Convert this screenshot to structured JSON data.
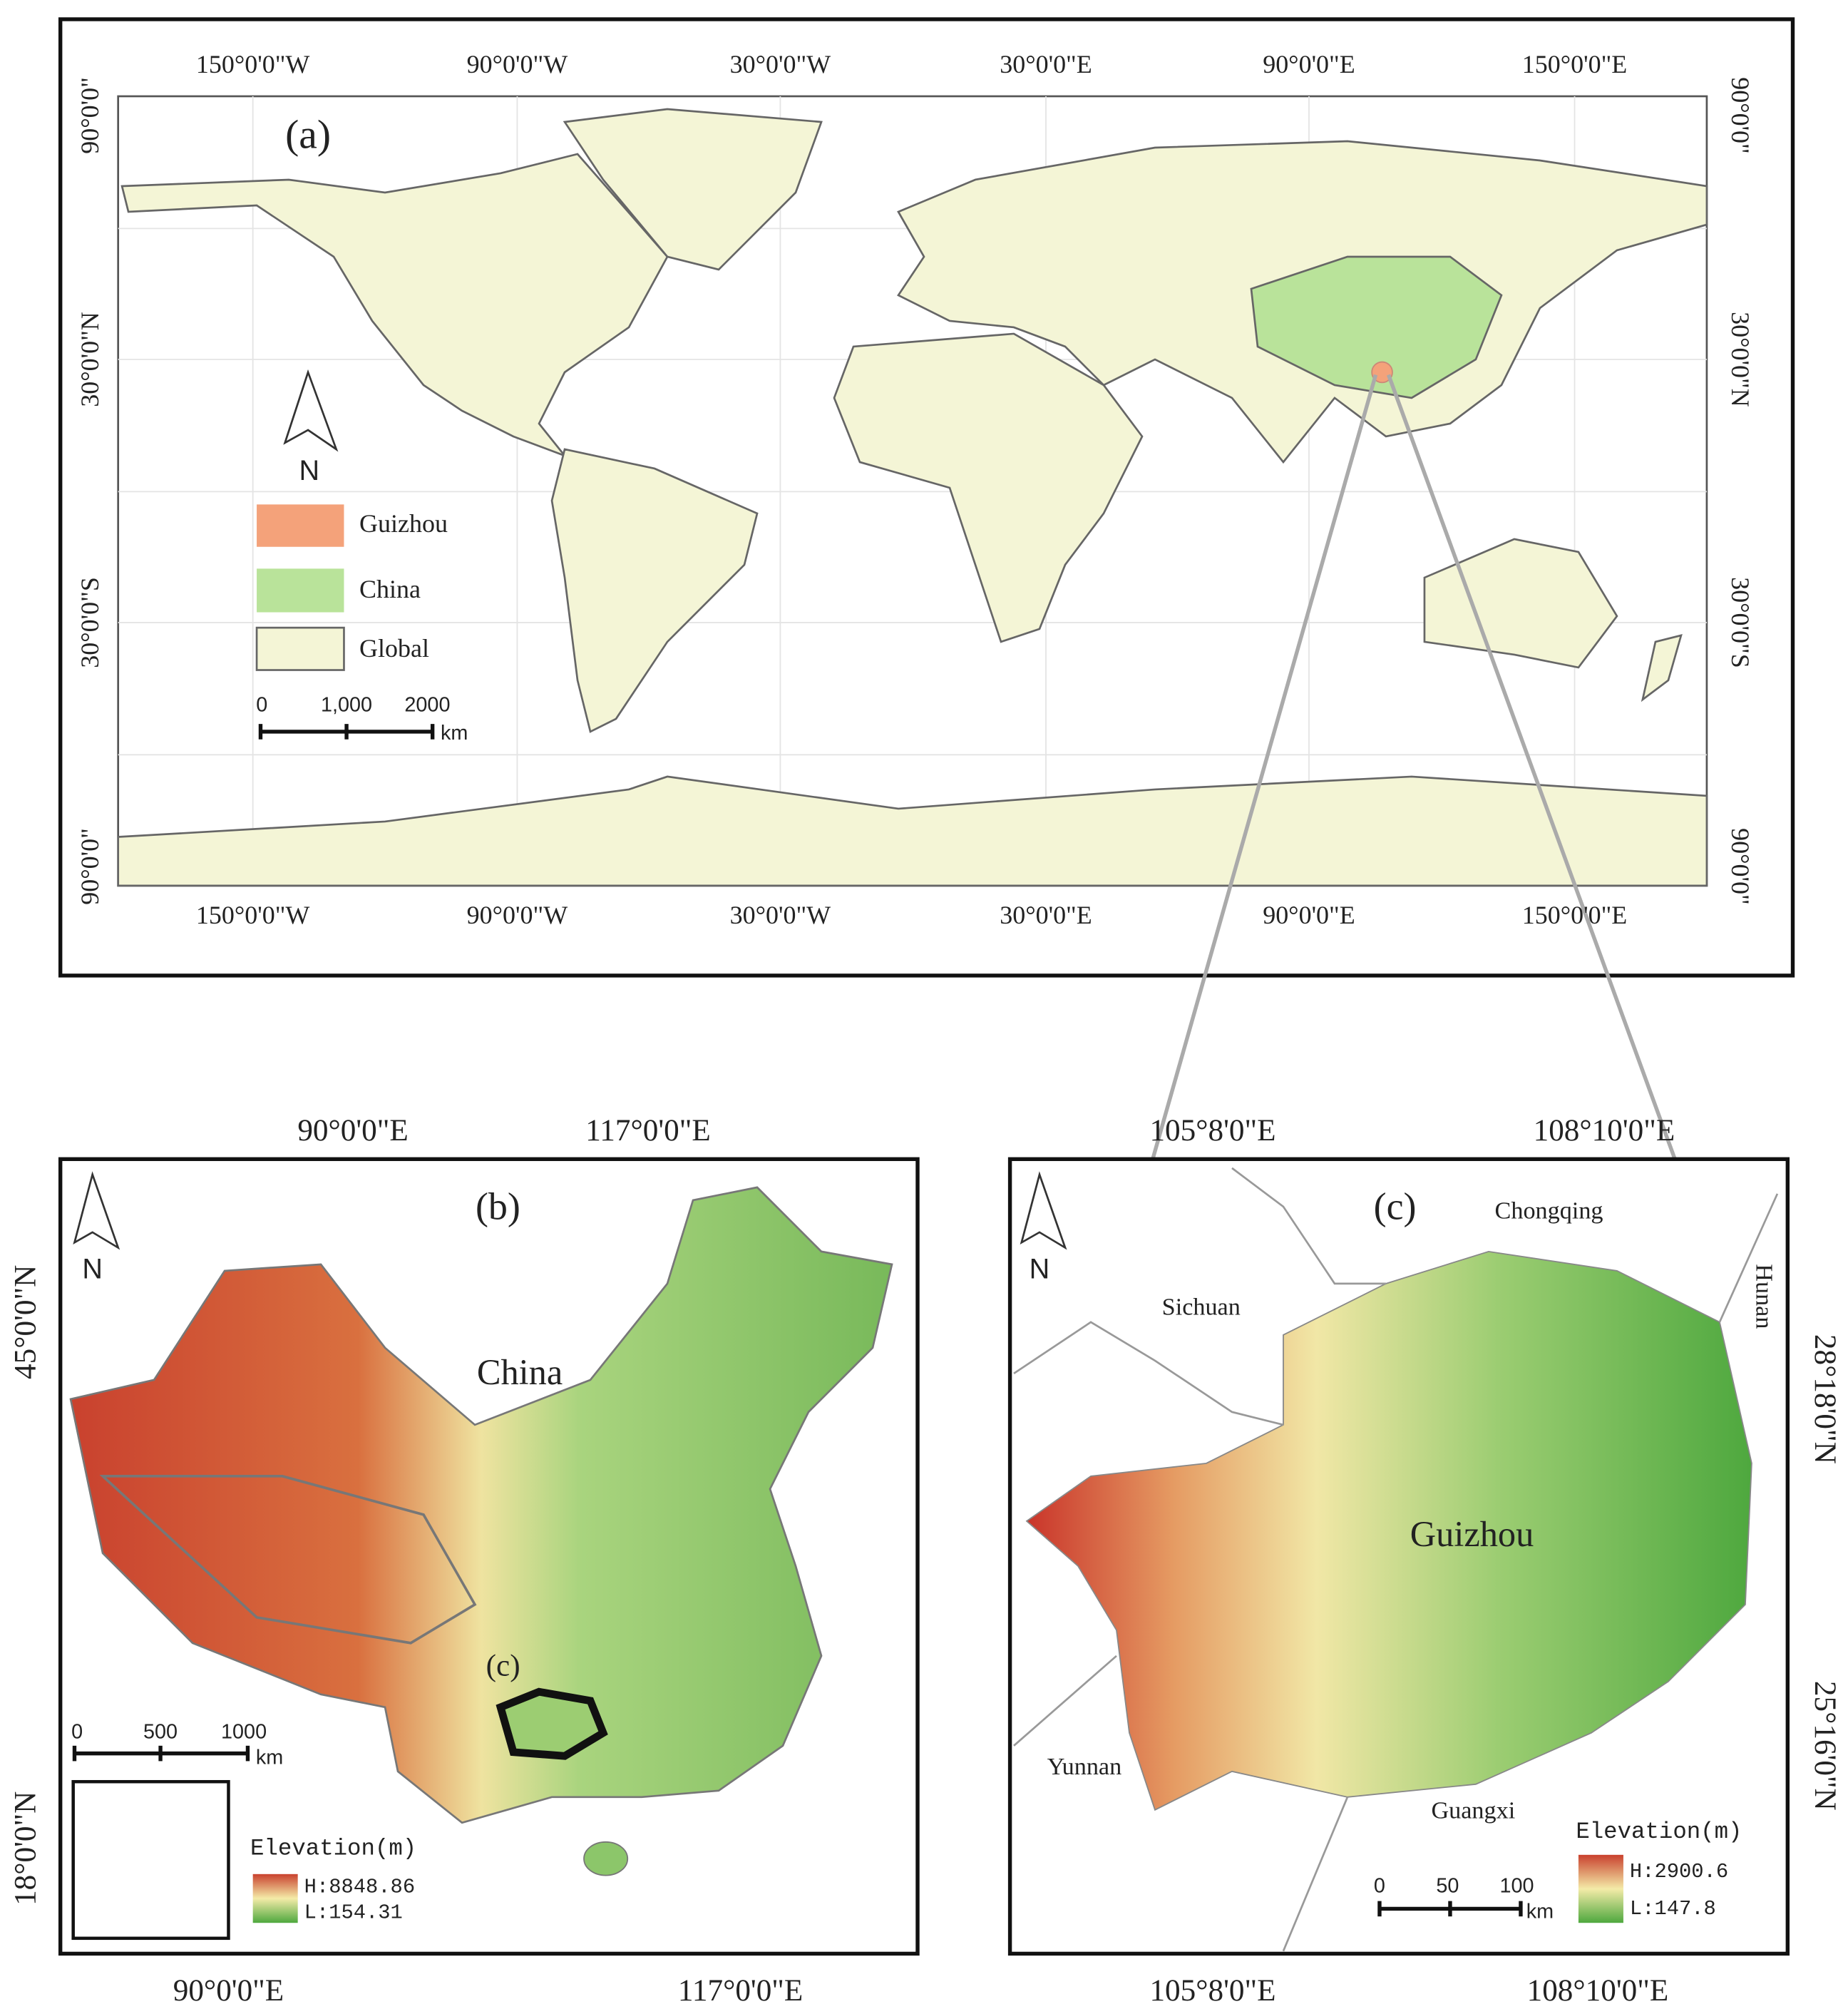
{
  "panel_a": {
    "label": "(a)",
    "top_ticks": [
      "150°0'0\"W",
      "90°0'0\"W",
      "30°0'0\"W",
      "30°0'0\"E",
      "90°0'0\"E",
      "150°0'0\"E"
    ],
    "bottom_ticks": [
      "150°0'0\"W",
      "90°0'0\"W",
      "30°0'0\"W",
      "30°0'0\"E",
      "90°0'0\"E",
      "150°0'0\"E"
    ],
    "left_ticks": [
      "90°0'0\"",
      "30°0'0\"N",
      "30°0'0\"S",
      "90°0'0\""
    ],
    "right_ticks": [
      "90°0'0\"",
      "30°0'0\"N",
      "30°0'0\"S",
      "90°0'0\""
    ],
    "north": "N",
    "legend": [
      "Guizhou",
      "China",
      "Global"
    ],
    "scale_labels": [
      "0",
      "1,000",
      "2000"
    ],
    "scale_unit": "km"
  },
  "panel_b": {
    "label": "(b)",
    "top_ticks": [
      "90°0'0\"E",
      "117°0'0\"E"
    ],
    "bottom_ticks": [
      "90°0'0\"E",
      "117°0'0\"E"
    ],
    "left_ticks": [
      "45°0'0\"N",
      "18°0'0\"N"
    ],
    "north": "N",
    "region": "China",
    "inset_label": "(c)",
    "scale_labels": [
      "0",
      "500",
      "1000"
    ],
    "scale_unit": "km",
    "legend_title": "Elevation(m)",
    "legend_high": "H:8848.86",
    "legend_low": "L:154.31"
  },
  "panel_c": {
    "label": "(c)",
    "top_ticks": [
      "105°8'0\"E",
      "108°10'0\"E"
    ],
    "bottom_ticks": [
      "105°8'0\"E",
      "108°10'0\"E"
    ],
    "right_ticks": [
      "28°18'0\"N",
      "25°16'0\"N"
    ],
    "north": "N",
    "region": "Guizhou",
    "neighbors": [
      "Chongqing",
      "Sichuan",
      "Hunan",
      "Yunnan",
      "Guangxi"
    ],
    "scale_labels": [
      "0",
      "50",
      "100"
    ],
    "scale_unit": "km",
    "legend_title": "Elevation(m)",
    "legend_high": "H:2900.6",
    "legend_low": "L:147.8"
  }
}
